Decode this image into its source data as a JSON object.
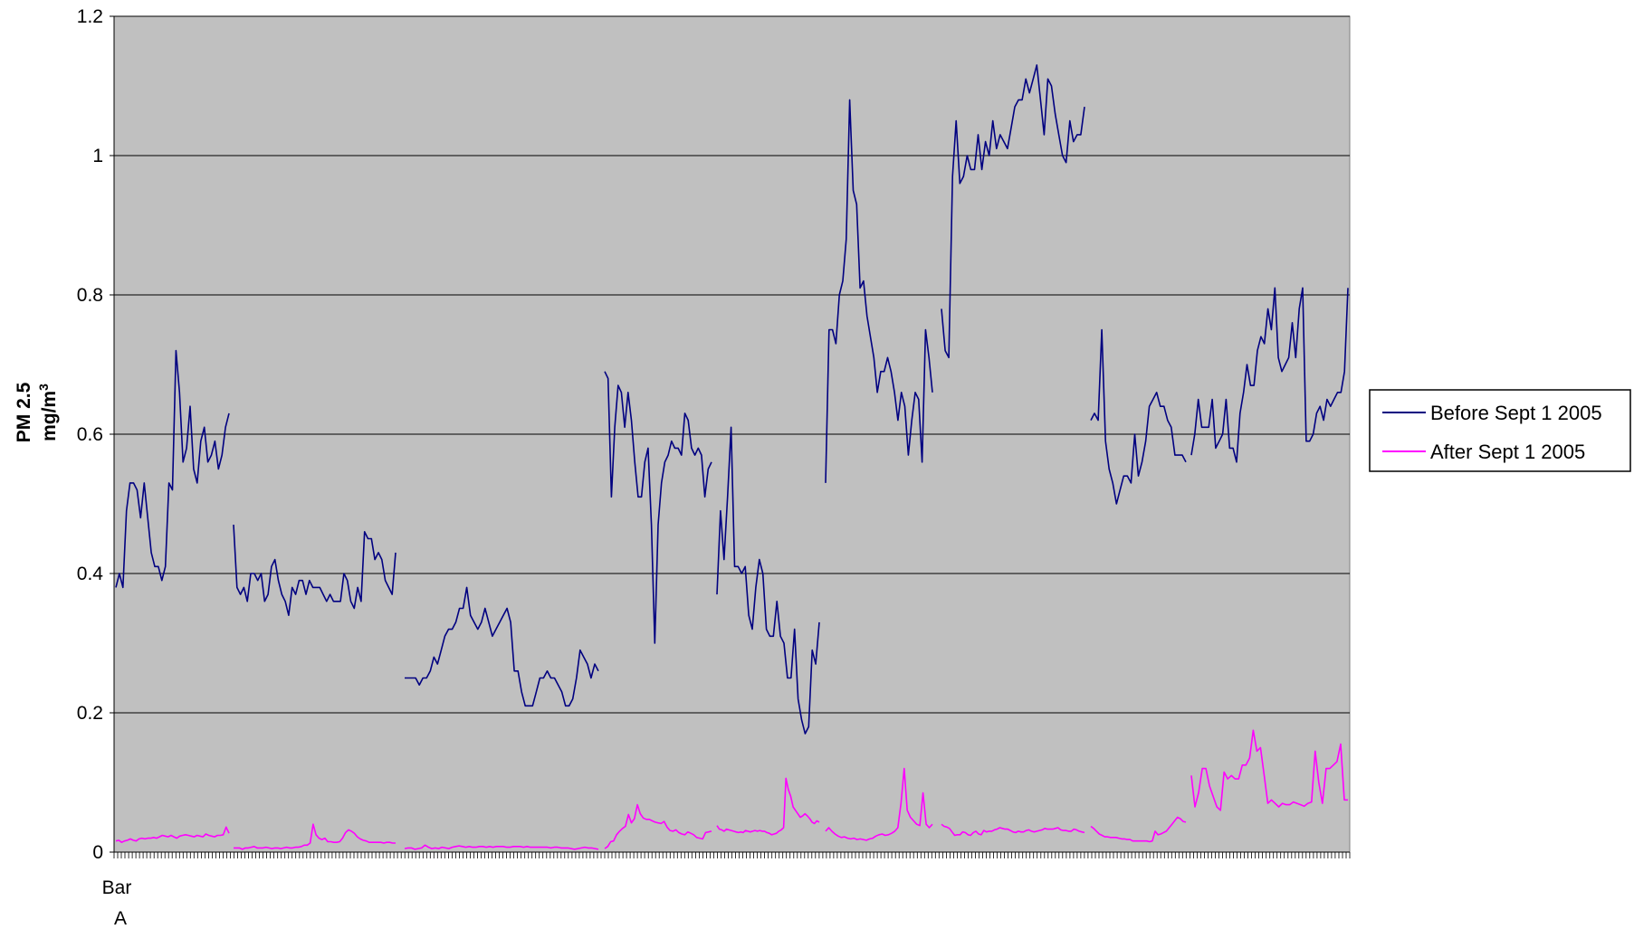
{
  "chart_data": {
    "type": "line",
    "title": "",
    "ylabel_line1": "PM 2.5",
    "ylabel_line2": "mg/m",
    "ylabel_superscript": "3",
    "xlabel": "",
    "x_category_label": [
      "Bar",
      "A"
    ],
    "ylim": [
      0,
      1.2
    ],
    "yticks": [
      "0",
      "0.2",
      "0.4",
      "0.6",
      "0.8",
      "1",
      "1.2"
    ],
    "grid": "horizontal",
    "legend_position": "right",
    "plot_background": "#C0C0C0",
    "series": [
      {
        "name": "Before Sept 1 2005",
        "color": "#000080",
        "segments": [
          [
            0.38,
            0.4,
            0.38,
            0.49,
            0.53,
            0.53,
            0.52,
            0.48,
            0.53,
            0.48,
            0.43,
            0.41,
            0.41,
            0.39,
            0.41,
            0.53,
            0.52,
            0.72,
            0.66,
            0.56,
            0.58,
            0.64,
            0.55,
            0.53,
            0.59,
            0.61,
            0.56,
            0.57,
            0.59,
            0.55,
            0.57,
            0.61,
            0.63
          ],
          [
            0.47,
            0.38,
            0.37,
            0.38,
            0.36,
            0.4,
            0.4,
            0.39,
            0.4,
            0.36,
            0.37,
            0.41,
            0.42,
            0.39,
            0.37,
            0.36,
            0.34,
            0.38,
            0.37,
            0.39,
            0.39,
            0.37,
            0.39,
            0.38,
            0.38,
            0.38,
            0.37,
            0.36,
            0.37,
            0.36,
            0.36,
            0.36,
            0.4,
            0.39,
            0.36,
            0.35,
            0.38,
            0.36,
            0.46,
            0.45,
            0.45,
            0.42,
            0.43,
            0.42,
            0.39,
            0.38,
            0.37,
            0.43
          ],
          [
            0.25,
            0.25,
            0.25,
            0.25,
            0.24,
            0.25,
            0.25,
            0.26,
            0.28,
            0.27,
            0.29,
            0.31,
            0.32,
            0.32,
            0.33,
            0.35,
            0.35,
            0.38,
            0.34,
            0.33,
            0.32,
            0.33,
            0.35,
            0.33,
            0.31,
            0.32,
            0.33,
            0.34,
            0.35,
            0.33,
            0.26,
            0.26,
            0.23,
            0.21,
            0.21,
            0.21,
            0.23,
            0.25,
            0.25,
            0.26,
            0.25,
            0.25,
            0.24,
            0.23,
            0.21,
            0.21,
            0.22,
            0.25,
            0.29,
            0.28,
            0.27,
            0.25,
            0.27,
            0.26
          ],
          [
            0.69,
            0.68,
            0.51,
            0.61,
            0.67,
            0.66,
            0.61,
            0.66,
            0.62,
            0.56,
            0.51,
            0.51,
            0.56,
            0.58,
            0.47,
            0.3,
            0.47,
            0.53,
            0.56,
            0.57,
            0.59,
            0.58,
            0.58,
            0.57,
            0.63,
            0.62,
            0.58,
            0.57,
            0.58,
            0.57,
            0.51,
            0.55,
            0.56
          ],
          [
            0.37,
            0.49,
            0.42,
            0.51,
            0.61,
            0.41,
            0.41,
            0.4,
            0.41,
            0.34,
            0.32,
            0.38,
            0.42,
            0.4,
            0.32,
            0.31,
            0.31,
            0.36,
            0.31,
            0.3,
            0.25,
            0.25,
            0.32,
            0.22,
            0.19,
            0.17,
            0.18,
            0.29,
            0.27,
            0.33
          ],
          [
            0.53,
            0.75,
            0.75,
            0.73,
            0.8,
            0.82,
            0.88,
            1.08,
            0.95,
            0.93,
            0.81,
            0.82,
            0.77,
            0.74,
            0.71,
            0.66,
            0.69,
            0.69,
            0.71,
            0.69,
            0.66,
            0.62,
            0.66,
            0.64,
            0.57,
            0.62,
            0.66,
            0.65,
            0.56,
            0.75,
            0.71,
            0.66
          ],
          [
            0.78,
            0.72,
            0.71,
            0.97,
            1.05,
            0.96,
            0.97,
            1.0,
            0.98,
            0.98,
            1.03,
            0.98,
            1.02,
            1.0,
            1.05,
            1.01,
            1.03,
            1.02,
            1.01,
            1.04,
            1.07,
            1.08,
            1.08,
            1.11,
            1.09,
            1.11,
            1.13,
            1.08,
            1.03,
            1.11,
            1.1,
            1.06,
            1.03,
            1.0,
            0.99,
            1.05,
            1.02,
            1.03,
            1.03,
            1.07
          ],
          [
            0.62,
            0.63,
            0.62,
            0.75,
            0.59,
            0.55,
            0.53,
            0.5,
            0.52,
            0.54,
            0.54,
            0.53,
            0.6,
            0.54,
            0.56,
            0.59,
            0.64,
            0.65,
            0.66,
            0.64,
            0.64,
            0.62,
            0.61,
            0.57,
            0.57,
            0.57,
            0.56
          ],
          [
            0.57,
            0.6,
            0.65,
            0.61,
            0.61,
            0.61,
            0.65,
            0.58,
            0.59,
            0.6,
            0.65,
            0.58,
            0.58,
            0.56,
            0.63,
            0.66,
            0.7,
            0.67,
            0.67,
            0.72,
            0.74,
            0.73,
            0.78,
            0.75,
            0.81,
            0.71,
            0.69,
            0.7,
            0.71,
            0.76,
            0.71,
            0.78,
            0.81,
            0.59,
            0.59,
            0.6,
            0.63,
            0.64,
            0.62,
            0.65,
            0.64,
            0.65,
            0.66,
            0.66,
            0.69,
            0.81
          ]
        ]
      },
      {
        "name": "After Sept 1 2005",
        "color": "#FF00FF",
        "segments": [
          [
            0.016,
            0.017,
            0.014,
            0.016,
            0.017,
            0.019,
            0.017,
            0.016,
            0.019,
            0.02,
            0.019,
            0.02,
            0.02,
            0.021,
            0.02,
            0.022,
            0.024,
            0.023,
            0.022,
            0.024,
            0.022,
            0.02,
            0.023,
            0.024,
            0.025,
            0.024,
            0.023,
            0.022,
            0.024,
            0.023,
            0.022,
            0.026,
            0.024,
            0.023,
            0.022,
            0.024,
            0.024,
            0.025,
            0.036,
            0.027
          ],
          [
            0.006,
            0.006,
            0.006,
            0.004,
            0.006,
            0.006,
            0.007,
            0.008,
            0.006,
            0.006,
            0.006,
            0.007,
            0.006,
            0.005,
            0.006,
            0.006,
            0.005,
            0.006,
            0.007,
            0.006,
            0.006,
            0.007,
            0.007,
            0.008,
            0.01,
            0.01,
            0.013,
            0.04,
            0.025,
            0.02,
            0.018,
            0.02,
            0.015,
            0.015,
            0.014,
            0.014,
            0.015,
            0.02,
            0.028,
            0.032,
            0.03,
            0.027,
            0.022,
            0.019,
            0.017,
            0.016,
            0.014,
            0.014,
            0.014,
            0.014,
            0.014,
            0.013,
            0.014,
            0.014,
            0.013,
            0.013
          ],
          [
            0.005,
            0.006,
            0.006,
            0.004,
            0.005,
            0.006,
            0.01,
            0.007,
            0.005,
            0.006,
            0.005,
            0.007,
            0.006,
            0.005,
            0.007,
            0.008,
            0.009,
            0.008,
            0.007,
            0.008,
            0.007,
            0.007,
            0.008,
            0.008,
            0.007,
            0.008,
            0.007,
            0.008,
            0.008,
            0.008,
            0.007,
            0.007,
            0.008,
            0.008,
            0.008,
            0.007,
            0.008,
            0.007,
            0.007,
            0.007,
            0.007,
            0.007,
            0.007,
            0.006,
            0.007,
            0.007,
            0.006,
            0.006,
            0.006,
            0.005,
            0.004,
            0.005,
            0.006,
            0.007,
            0.006,
            0.006,
            0.005,
            0.004
          ],
          [
            0.005,
            0.008,
            0.015,
            0.016,
            0.025,
            0.03,
            0.034,
            0.037,
            0.054,
            0.042,
            0.048,
            0.068,
            0.055,
            0.049,
            0.047,
            0.047,
            0.045,
            0.043,
            0.042,
            0.041,
            0.044,
            0.036,
            0.031,
            0.03,
            0.032,
            0.028,
            0.026,
            0.025,
            0.029,
            0.027,
            0.025,
            0.021,
            0.02,
            0.019,
            0.028,
            0.029,
            0.03
          ],
          [
            0.038,
            0.033,
            0.032,
            0.03,
            0.033,
            0.032,
            0.031,
            0.03,
            0.029,
            0.028,
            0.029,
            0.028,
            0.031,
            0.03,
            0.029,
            0.03,
            0.031,
            0.03,
            0.031,
            0.03,
            0.03,
            0.028,
            0.027,
            0.025,
            0.026,
            0.027,
            0.03,
            0.032,
            0.035,
            0.106,
            0.09,
            0.08,
            0.065,
            0.06,
            0.055,
            0.05,
            0.052,
            0.055,
            0.052,
            0.048,
            0.043,
            0.041,
            0.045,
            0.043
          ],
          [
            0.03,
            0.035,
            0.03,
            0.026,
            0.023,
            0.021,
            0.022,
            0.02,
            0.019,
            0.02,
            0.018,
            0.019,
            0.018,
            0.017,
            0.019,
            0.02,
            0.023,
            0.025,
            0.026,
            0.024,
            0.025,
            0.027,
            0.03,
            0.035,
            0.07,
            0.12,
            0.06,
            0.05,
            0.045,
            0.04,
            0.038,
            0.085,
            0.04,
            0.035,
            0.04
          ],
          [
            0.04,
            0.037,
            0.036,
            0.034,
            0.029,
            0.024,
            0.025,
            0.025,
            0.029,
            0.028,
            0.025,
            0.024,
            0.028,
            0.03,
            0.026,
            0.025,
            0.031,
            0.029,
            0.03,
            0.03,
            0.032,
            0.033,
            0.035,
            0.034,
            0.033,
            0.033,
            0.031,
            0.029,
            0.028,
            0.03,
            0.029,
            0.029,
            0.031,
            0.032,
            0.03,
            0.029,
            0.03,
            0.031,
            0.032,
            0.034,
            0.033,
            0.033,
            0.033,
            0.034,
            0.035,
            0.032,
            0.031,
            0.031,
            0.03,
            0.03,
            0.033,
            0.032,
            0.03,
            0.029,
            0.028
          ],
          [
            0.037,
            0.034,
            0.03,
            0.026,
            0.024,
            0.022,
            0.022,
            0.021,
            0.021,
            0.021,
            0.02,
            0.019,
            0.019,
            0.018,
            0.018,
            0.016,
            0.016,
            0.016,
            0.016,
            0.016,
            0.016,
            0.015,
            0.016,
            0.03,
            0.025,
            0.026,
            0.028,
            0.03,
            0.035,
            0.04,
            0.045,
            0.05,
            0.048,
            0.044,
            0.043
          ],
          [
            0.11,
            0.065,
            0.085,
            0.12,
            0.12,
            0.095,
            0.08,
            0.065,
            0.06,
            0.115,
            0.105,
            0.11,
            0.105,
            0.105,
            0.125,
            0.125,
            0.135,
            0.175,
            0.145,
            0.15,
            0.11,
            0.07,
            0.075,
            0.07,
            0.065,
            0.07,
            0.068,
            0.068,
            0.072,
            0.07,
            0.068,
            0.066,
            0.07,
            0.072,
            0.145,
            0.1,
            0.07,
            0.12,
            0.12,
            0.125,
            0.13,
            0.155,
            0.075,
            0.075
          ]
        ]
      }
    ]
  }
}
